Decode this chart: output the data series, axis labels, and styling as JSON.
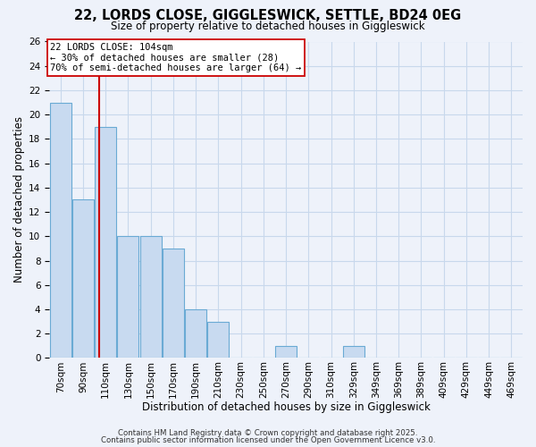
{
  "title": "22, LORDS CLOSE, GIGGLESWICK, SETTLE, BD24 0EG",
  "subtitle": "Size of property relative to detached houses in Giggleswick",
  "xlabel": "Distribution of detached houses by size in Giggleswick",
  "ylabel": "Number of detached properties",
  "bin_labels": [
    "70sqm",
    "90sqm",
    "110sqm",
    "130sqm",
    "150sqm",
    "170sqm",
    "190sqm",
    "210sqm",
    "230sqm",
    "250sqm",
    "270sqm",
    "290sqm",
    "310sqm",
    "329sqm",
    "349sqm",
    "369sqm",
    "389sqm",
    "409sqm",
    "429sqm",
    "449sqm",
    "469sqm"
  ],
  "counts": [
    21,
    13,
    19,
    10,
    10,
    9,
    4,
    3,
    0,
    0,
    1,
    0,
    0,
    1,
    0,
    0,
    0,
    0,
    0,
    0,
    0
  ],
  "bar_color": "#c8daf0",
  "bar_edge_color": "#6aaad4",
  "grid_color": "#c8d8ec",
  "property_line_color": "#cc0000",
  "property_bar_index": 1,
  "annotation_text": "22 LORDS CLOSE: 104sqm\n← 30% of detached houses are smaller (28)\n70% of semi-detached houses are larger (64) →",
  "annotation_box_color": "#ffffff",
  "annotation_box_edge_color": "#cc0000",
  "footnote1": "Contains HM Land Registry data © Crown copyright and database right 2025.",
  "footnote2": "Contains public sector information licensed under the Open Government Licence v3.0.",
  "ylim": [
    0,
    26
  ],
  "yticks": [
    0,
    2,
    4,
    6,
    8,
    10,
    12,
    14,
    16,
    18,
    20,
    22,
    24,
    26
  ],
  "bg_color": "#eef2fa",
  "title_fontsize": 10.5,
  "subtitle_fontsize": 8.5,
  "xlabel_fontsize": 8.5,
  "ylabel_fontsize": 8.5,
  "tick_fontsize": 7.5,
  "annotation_fontsize": 7.5
}
